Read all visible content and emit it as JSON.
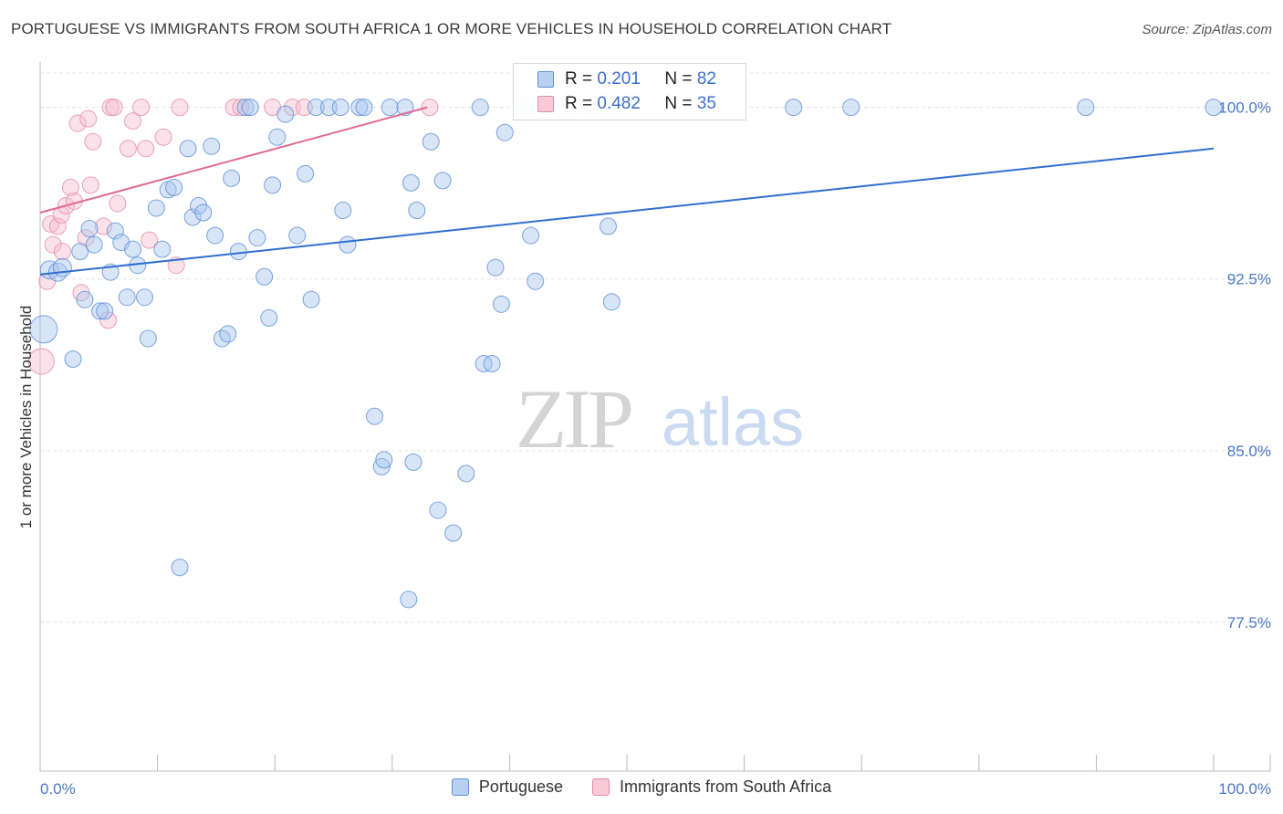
{
  "title": "PORTUGUESE VS IMMIGRANTS FROM SOUTH AFRICA 1 OR MORE VEHICLES IN HOUSEHOLD CORRELATION CHART",
  "source": "Source: ZipAtlas.com",
  "watermark": {
    "zip": "ZIP",
    "atlas": "atlas"
  },
  "legend": {
    "rows": [
      {
        "r_label": "R =",
        "r_value": "0.201",
        "n_label": "N =",
        "n_value": "82"
      },
      {
        "r_label": "R =",
        "r_value": "0.482",
        "n_label": "N =",
        "n_value": "35"
      }
    ]
  },
  "bottom_legend": [
    "Portuguese",
    "Immigrants from South Africa"
  ],
  "colors": {
    "blue_fill": "#a9c6ee",
    "blue_stroke": "#5b8fd6",
    "blue_line": "#2f6fd0",
    "pink_fill": "#f6bfd0",
    "pink_stroke": "#e48aa8",
    "pink_line": "#e06a93",
    "grid": "#e3e3e3",
    "tick_label": "#4a78c8"
  },
  "chart_data": {
    "type": "scatter",
    "title": "PORTUGUESE VS IMMIGRANTS FROM SOUTH AFRICA 1 OR MORE VEHICLES IN HOUSEHOLD CORRELATION CHART",
    "xlabel": "",
    "ylabel": "1 or more Vehicles in Household",
    "xlim": [
      0,
      100
    ],
    "ylim": [
      71.0,
      101.5
    ],
    "x_tick_labels": [
      "0.0%",
      "100.0%"
    ],
    "y_ticks": [
      77.5,
      85.0,
      92.5,
      100.0
    ],
    "y_tick_labels": [
      "77.5%",
      "85.0%",
      "92.5%",
      "100.0%"
    ],
    "grid": true,
    "legend_position": "top-center",
    "series": [
      {
        "name": "Portuguese",
        "R": 0.201,
        "N": 82,
        "trend": {
          "x": [
            0,
            100
          ],
          "y": [
            92.7,
            98.2
          ]
        },
        "points": [
          [
            0.3,
            90.3,
            14
          ],
          [
            0.8,
            92.9,
            9
          ],
          [
            1.5,
            92.8,
            9
          ],
          [
            1.9,
            93.0,
            9
          ],
          [
            2.8,
            89.0,
            8
          ],
          [
            3.4,
            93.7,
            8
          ],
          [
            3.8,
            91.6,
            8
          ],
          [
            4.2,
            94.7,
            8
          ],
          [
            4.6,
            94.0,
            8
          ],
          [
            5.1,
            91.1,
            8
          ],
          [
            5.5,
            91.1,
            8
          ],
          [
            6.0,
            92.8,
            8
          ],
          [
            6.4,
            94.6,
            8
          ],
          [
            6.9,
            94.1,
            8
          ],
          [
            7.4,
            91.7,
            8
          ],
          [
            7.9,
            93.8,
            8
          ],
          [
            8.3,
            93.1,
            8
          ],
          [
            8.9,
            91.7,
            8
          ],
          [
            9.2,
            89.9,
            8
          ],
          [
            9.9,
            95.6,
            8
          ],
          [
            10.4,
            93.8,
            8
          ],
          [
            10.9,
            96.4,
            8
          ],
          [
            11.4,
            96.5,
            8
          ],
          [
            11.9,
            79.9,
            8
          ],
          [
            12.6,
            98.2,
            8
          ],
          [
            13.0,
            95.2,
            8
          ],
          [
            13.5,
            95.7,
            8
          ],
          [
            13.9,
            95.4,
            8
          ],
          [
            14.6,
            98.3,
            8
          ],
          [
            14.9,
            94.4,
            8
          ],
          [
            15.5,
            89.9,
            8
          ],
          [
            16.0,
            90.1,
            8
          ],
          [
            16.3,
            96.9,
            8
          ],
          [
            16.9,
            93.7,
            8
          ],
          [
            17.5,
            100.0,
            8
          ],
          [
            17.9,
            100.0,
            8
          ],
          [
            18.5,
            94.3,
            8
          ],
          [
            19.1,
            92.6,
            8
          ],
          [
            19.5,
            90.8,
            8
          ],
          [
            19.8,
            96.6,
            8
          ],
          [
            20.2,
            98.7,
            8
          ],
          [
            20.9,
            99.7,
            8
          ],
          [
            21.9,
            94.4,
            8
          ],
          [
            22.6,
            97.1,
            8
          ],
          [
            23.1,
            91.6,
            8
          ],
          [
            23.5,
            100.0,
            8
          ],
          [
            24.6,
            100.0,
            8
          ],
          [
            25.6,
            100.0,
            8
          ],
          [
            25.8,
            95.5,
            8
          ],
          [
            26.2,
            94.0,
            8
          ],
          [
            27.2,
            100.0,
            8
          ],
          [
            27.6,
            100.0,
            8
          ],
          [
            28.5,
            86.5,
            8
          ],
          [
            29.1,
            84.3,
            8
          ],
          [
            29.3,
            84.6,
            8
          ],
          [
            29.8,
            100.0,
            8
          ],
          [
            31.1,
            100.0,
            8
          ],
          [
            31.6,
            96.7,
            8
          ],
          [
            31.8,
            84.5,
            8
          ],
          [
            31.4,
            78.5,
            8
          ],
          [
            32.1,
            95.5,
            8
          ],
          [
            33.3,
            98.5,
            8
          ],
          [
            33.9,
            82.4,
            8
          ],
          [
            34.3,
            96.8,
            8
          ],
          [
            35.2,
            81.4,
            8
          ],
          [
            36.3,
            84.0,
            8
          ],
          [
            37.5,
            100.0,
            8
          ],
          [
            37.8,
            88.8,
            8
          ],
          [
            38.5,
            88.8,
            8
          ],
          [
            38.8,
            93.0,
            8
          ],
          [
            39.3,
            91.4,
            8
          ],
          [
            39.6,
            98.9,
            8
          ],
          [
            41.5,
            100.0,
            8
          ],
          [
            41.8,
            94.4,
            8
          ],
          [
            42.2,
            92.4,
            8
          ],
          [
            48.4,
            94.8,
            8
          ],
          [
            48.7,
            91.5,
            8
          ],
          [
            64.2,
            100.0,
            8
          ],
          [
            69.1,
            100.0,
            8
          ],
          [
            89.1,
            100.0,
            8
          ],
          [
            100.0,
            100.0,
            8
          ],
          [
            46.8,
            100.0,
            8
          ]
        ]
      },
      {
        "name": "Immigrants from South Africa",
        "R": 0.482,
        "N": 35,
        "trend": {
          "x": [
            0,
            33
          ],
          "y": [
            95.4,
            100.0
          ]
        },
        "points": [
          [
            0.1,
            88.9,
            13
          ],
          [
            0.6,
            92.4,
            8
          ],
          [
            0.9,
            94.9,
            8
          ],
          [
            1.1,
            94.0,
            8
          ],
          [
            1.5,
            94.8,
            8
          ],
          [
            1.8,
            95.3,
            8
          ],
          [
            1.9,
            93.7,
            8
          ],
          [
            2.2,
            95.7,
            8
          ],
          [
            2.6,
            96.5,
            8
          ],
          [
            2.9,
            95.9,
            8
          ],
          [
            3.2,
            99.3,
            8
          ],
          [
            3.5,
            91.9,
            8
          ],
          [
            3.9,
            94.3,
            8
          ],
          [
            4.1,
            99.5,
            8
          ],
          [
            4.3,
            96.6,
            8
          ],
          [
            4.5,
            98.5,
            8
          ],
          [
            5.4,
            94.8,
            8
          ],
          [
            5.8,
            90.7,
            8
          ],
          [
            6.0,
            100.0,
            8
          ],
          [
            6.3,
            100.0,
            8
          ],
          [
            6.6,
            95.8,
            8
          ],
          [
            7.5,
            98.2,
            8
          ],
          [
            7.9,
            99.4,
            8
          ],
          [
            8.6,
            100.0,
            8
          ],
          [
            9.0,
            98.2,
            8
          ],
          [
            9.3,
            94.2,
            8
          ],
          [
            10.5,
            98.7,
            8
          ],
          [
            11.6,
            93.1,
            8
          ],
          [
            11.9,
            100.0,
            8
          ],
          [
            16.5,
            100.0,
            8
          ],
          [
            17.1,
            100.0,
            8
          ],
          [
            19.8,
            100.0,
            8
          ],
          [
            21.5,
            100.0,
            8
          ],
          [
            22.5,
            100.0,
            8
          ],
          [
            33.2,
            100.0,
            8
          ]
        ]
      }
    ]
  }
}
